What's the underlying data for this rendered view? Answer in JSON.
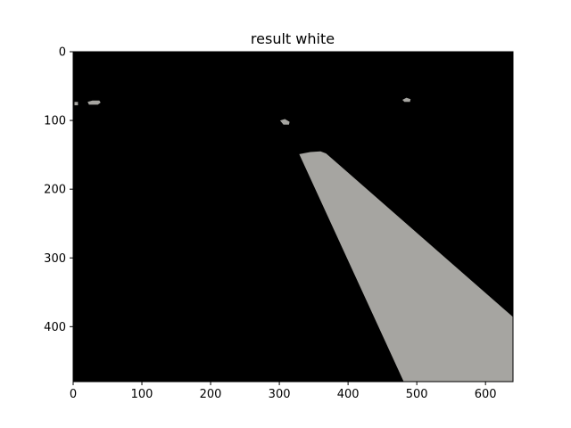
{
  "chart_data": {
    "type": "image",
    "title": "result white",
    "xlabel": "",
    "ylabel": "",
    "xlim": [
      0,
      640
    ],
    "ylim": [
      480,
      0
    ],
    "x_ticks": [
      0,
      100,
      200,
      300,
      400,
      500,
      600
    ],
    "y_ticks": [
      0,
      100,
      200,
      300,
      400
    ],
    "background_color": "#000000",
    "mask_color": "#a6a5a1",
    "regions": [
      {
        "name": "lane-marking",
        "points": [
          [
            329,
            149
          ],
          [
            345,
            146
          ],
          [
            360,
            145
          ],
          [
            368,
            148
          ],
          [
            640,
            386
          ],
          [
            640,
            480
          ],
          [
            481,
            480
          ]
        ]
      },
      {
        "name": "blob-left-small",
        "points": [
          [
            2,
            73
          ],
          [
            7,
            73
          ],
          [
            7,
            78
          ],
          [
            2,
            78
          ]
        ]
      },
      {
        "name": "blob-left",
        "points": [
          [
            21,
            73
          ],
          [
            28,
            71
          ],
          [
            38,
            71
          ],
          [
            40,
            74
          ],
          [
            36,
            77
          ],
          [
            23,
            77
          ]
        ]
      },
      {
        "name": "blob-middle",
        "points": [
          [
            301,
            100
          ],
          [
            308,
            98
          ],
          [
            315,
            102
          ],
          [
            314,
            106
          ],
          [
            306,
            106
          ]
        ]
      },
      {
        "name": "blob-right",
        "points": [
          [
            479,
            70
          ],
          [
            485,
            67
          ],
          [
            491,
            69
          ],
          [
            490,
            73
          ],
          [
            482,
            73
          ]
        ]
      }
    ]
  }
}
